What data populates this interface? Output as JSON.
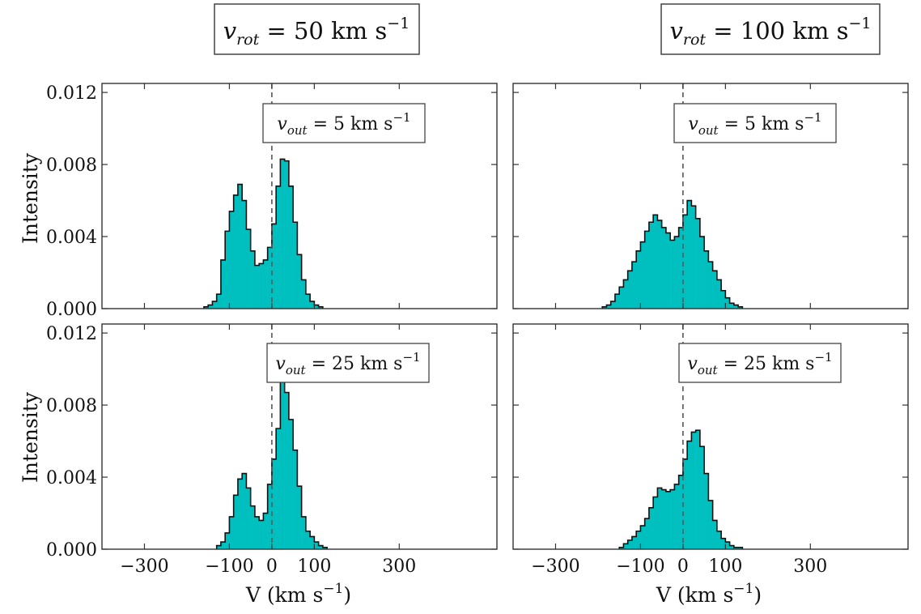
{
  "columns": [
    {
      "title": "v",
      "title_sub": "rot",
      "title_rest": " = 50 km s",
      "title_sup": "−1"
    },
    {
      "title": "v",
      "title_sub": "rot",
      "title_rest": " = 100 km s",
      "title_sup": "−1"
    }
  ],
  "ylabel": "Intensity",
  "xlabel": {
    "main": "V (km s",
    "sup": "−1",
    "close": ")"
  },
  "x_ticks": [
    "−300",
    "−100",
    "0",
    "100",
    "300"
  ],
  "x_tick_values": [
    -300,
    -100,
    0,
    100,
    300
  ],
  "y_ticks": [
    "0.000",
    "0.004",
    "0.008",
    "0.012"
  ],
  "y_tick_values": [
    0,
    0.004,
    0.008,
    0.012
  ],
  "bar_color": "#00BFBF",
  "chart_data": [
    {
      "type": "bar",
      "title": "v_rot = 50 km s^-1; v_out = 5 km s^-1",
      "annotation": {
        "v": "v",
        "sub": "out",
        "rest": " = 5 km s",
        "sup": "−1"
      },
      "xlim": [
        -400,
        530
      ],
      "ylim": [
        0,
        0.0125
      ],
      "bin_width": 10,
      "bin_start": -160,
      "values": [
        0.0001,
        0.0002,
        0.0004,
        0.0008,
        0.0027,
        0.0043,
        0.0054,
        0.0063,
        0.0069,
        0.006,
        0.0044,
        0.0032,
        0.0024,
        0.0025,
        0.0027,
        0.0034,
        0.0047,
        0.0068,
        0.0083,
        0.0082,
        0.0068,
        0.0048,
        0.003,
        0.0016,
        0.0008,
        0.0004,
        0.0002,
        0.0001
      ],
      "dashed_line_x": 0
    },
    {
      "type": "bar",
      "title": "v_rot = 100 km s^-1; v_out = 5 km s^-1",
      "annotation": {
        "v": "v",
        "sub": "out",
        "rest": " = 5 km s",
        "sup": "−1"
      },
      "xlim": [
        -400,
        530
      ],
      "ylim": [
        0,
        0.0125
      ],
      "bin_width": 10,
      "bin_start": -190,
      "values": [
        0.0001,
        0.0002,
        0.0004,
        0.0008,
        0.0012,
        0.0016,
        0.0021,
        0.0026,
        0.0032,
        0.0037,
        0.0043,
        0.0048,
        0.0052,
        0.0049,
        0.0045,
        0.0042,
        0.0038,
        0.004,
        0.0045,
        0.0052,
        0.006,
        0.0057,
        0.005,
        0.004,
        0.0032,
        0.0026,
        0.0021,
        0.0016,
        0.001,
        0.0006,
        0.0003,
        0.0002,
        0.0001
      ],
      "dashed_line_x": 0
    },
    {
      "type": "bar",
      "title": "v_rot = 50 km s^-1; v_out = 25 km s^-1",
      "annotation": {
        "v": "v",
        "sub": "out",
        "rest": " = 25 km s",
        "sup": "−1"
      },
      "xlim": [
        -400,
        530
      ],
      "ylim": [
        0,
        0.0125
      ],
      "bin_width": 10,
      "bin_start": -130,
      "values": [
        0.0002,
        0.0004,
        0.0009,
        0.0018,
        0.003,
        0.0039,
        0.0042,
        0.0034,
        0.0024,
        0.0018,
        0.0016,
        0.002,
        0.0036,
        0.005,
        0.0067,
        0.0093,
        0.0087,
        0.0072,
        0.0055,
        0.0035,
        0.0018,
        0.001,
        0.0007,
        0.0004,
        0.0002,
        0.0001
      ],
      "dashed_line_x": 0
    },
    {
      "type": "bar",
      "title": "v_rot = 100 km s^-1; v_out = 25 km s^-1",
      "annotation": {
        "v": "v",
        "sub": "out",
        "rest": " = 25 km s",
        "sup": "−1"
      },
      "xlim": [
        -400,
        530
      ],
      "ylim": [
        0,
        0.0125
      ],
      "bin_width": 10,
      "bin_start": -150,
      "values": [
        0.0001,
        0.0003,
        0.0005,
        0.0007,
        0.001,
        0.0013,
        0.0017,
        0.0023,
        0.0029,
        0.0034,
        0.0033,
        0.0032,
        0.0033,
        0.0036,
        0.0041,
        0.005,
        0.006,
        0.0065,
        0.0066,
        0.0057,
        0.0042,
        0.0027,
        0.0016,
        0.001,
        0.0006,
        0.0004,
        0.0002,
        0.0001,
        0.0001
      ],
      "dashed_line_x": 0
    }
  ]
}
